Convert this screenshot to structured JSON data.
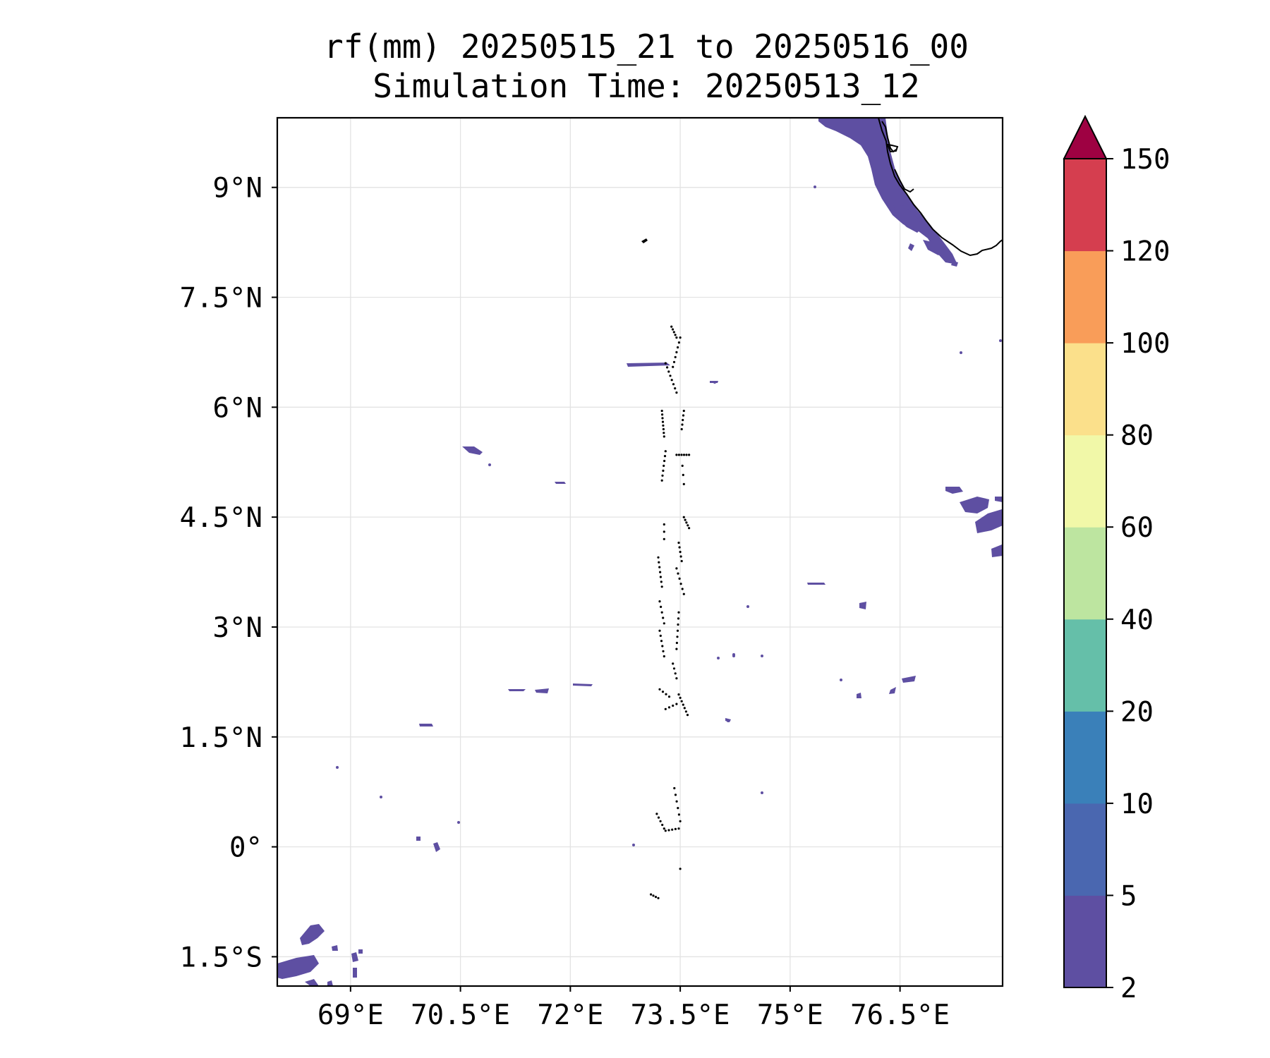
{
  "map": {
    "title_line1": "rf(mm) 20250515_21 to 20250516_00",
    "title_line2": "Simulation Time: 20250513_12",
    "lon_range": [
      68.0,
      77.9
    ],
    "lat_range": [
      -1.9,
      9.95
    ],
    "x_ticks": [
      {
        "value": 69.0,
        "label": "69°E"
      },
      {
        "value": 70.5,
        "label": "70.5°E"
      },
      {
        "value": 72.0,
        "label": "72°E"
      },
      {
        "value": 73.5,
        "label": "73.5°E"
      },
      {
        "value": 75.0,
        "label": "75°E"
      },
      {
        "value": 76.5,
        "label": "76.5°E"
      }
    ],
    "y_ticks": [
      {
        "value": 9.0,
        "label": "9°N"
      },
      {
        "value": 7.5,
        "label": "7.5°N"
      },
      {
        "value": 6.0,
        "label": "6°N"
      },
      {
        "value": 4.5,
        "label": "4.5°N"
      },
      {
        "value": 3.0,
        "label": "3°N"
      },
      {
        "value": 1.5,
        "label": "1.5°N"
      },
      {
        "value": 0.0,
        "label": "0°"
      },
      {
        "value": -1.5,
        "label": "1.5°S"
      }
    ],
    "gridlines": true
  },
  "colorbar": {
    "levels": [
      "2",
      "5",
      "10",
      "20",
      "40",
      "60",
      "80",
      "100",
      "120",
      "150"
    ],
    "colors": [
      "#5e4fa2",
      "#4a67b0",
      "#3a80b9",
      "#65bfa9",
      "#bde5a0",
      "#f1f8a8",
      "#fbe08b",
      "#f99d59",
      "#d53e4f"
    ],
    "extend_color": "#9e0142",
    "extend": "max"
  }
}
